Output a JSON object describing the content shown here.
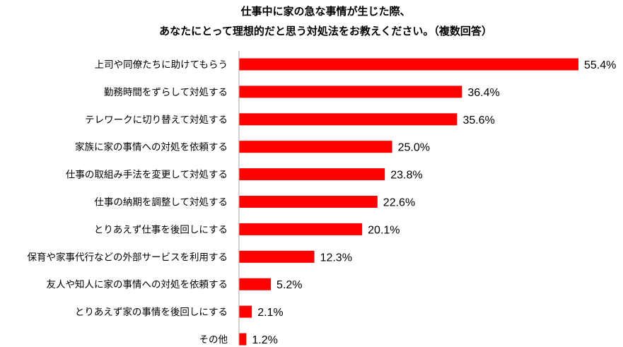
{
  "title_line1": "仕事中に家の急な事情が生じた際、",
  "title_line2": "あなたにとって理想的だと思う対処法をお教えください。（複数回答）",
  "chart_data": {
    "type": "bar",
    "orientation": "horizontal",
    "title": "仕事中に家の急な事情が生じた際、あなたにとって理想的だと思う対処法をお教えください。（複数回答）",
    "categories": [
      "上司や同僚たちに助けてもらう",
      "勤務時間をずらして対処する",
      "テレワークに切り替えて対処する",
      "家族に家の事情への対処を依頼する",
      "仕事の取組み手法を変更して対処する",
      "仕事の納期を調整して対処する",
      "とりあえず仕事を後回しにする",
      "保育や家事代行などの外部サービスを利用する",
      "友人や知人に家の事情への対処を依頼する",
      "とりあえず家の事情を後回しにする",
      "その他"
    ],
    "values": [
      55.4,
      36.4,
      35.6,
      25.0,
      23.8,
      22.6,
      20.1,
      12.3,
      5.2,
      2.1,
      1.2
    ],
    "value_labels": [
      "55.4%",
      "36.4%",
      "35.6%",
      "25.0%",
      "23.8%",
      "22.6%",
      "20.1%",
      "12.3%",
      "5.2%",
      "2.1%",
      "1.2%"
    ],
    "unit": "%",
    "xlim": [
      0,
      55.4
    ],
    "bar_color": "#ff0000",
    "axis_color": "#a6a6a6",
    "grid": false,
    "legend": "none"
  }
}
